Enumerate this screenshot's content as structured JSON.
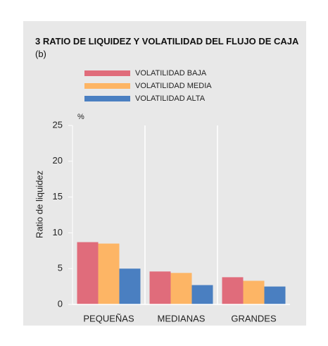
{
  "chart_data": {
    "type": "bar",
    "title": "3  RATIO DE LIQUIDEZ Y VOLATILIDAD DEL FLUJO DE CAJA",
    "title_note": "(b)",
    "y_label": "Ratio de liquidez",
    "y_unit": "%",
    "categories": [
      "PEQUEÑAS",
      "MEDIANAS",
      "GRANDES"
    ],
    "series": [
      {
        "name": "VOLATILIDAD BAJA",
        "color": "#e06c7b",
        "values": [
          8.7,
          4.6,
          3.8
        ]
      },
      {
        "name": "VOLATILIDAD MEDIA",
        "color": "#fdb565",
        "values": [
          8.5,
          4.4,
          3.3
        ]
      },
      {
        "name": "VOLATILIDAD ALTA",
        "color": "#4a7fc1",
        "values": [
          5.0,
          2.7,
          2.5
        ]
      }
    ],
    "ylim": [
      0,
      25
    ],
    "yticks": [
      0,
      5,
      10,
      15,
      20,
      25
    ]
  }
}
